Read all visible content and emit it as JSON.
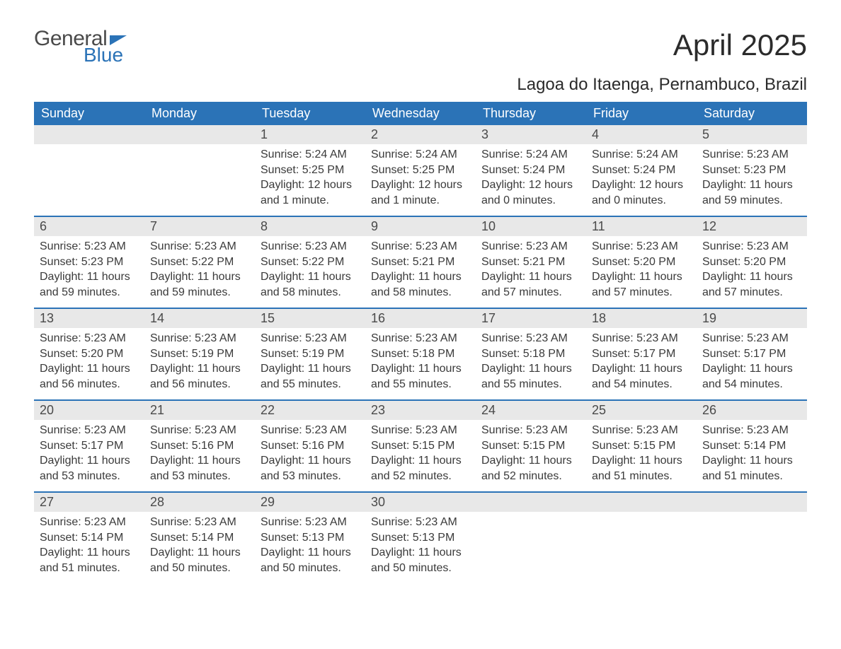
{
  "logo": {
    "word1": "General",
    "word2": "Blue"
  },
  "title": "April 2025",
  "subtitle": "Lagoa do Itaenga, Pernambuco, Brazil",
  "colors": {
    "header_bg": "#2b73b7",
    "header_text": "#ffffff",
    "daynum_bg": "#e8e8e8",
    "body_text": "#3a3a3a",
    "page_bg": "#ffffff",
    "logo_gray": "#4a4a4a",
    "logo_blue": "#2b73b7"
  },
  "weekdays": [
    "Sunday",
    "Monday",
    "Tuesday",
    "Wednesday",
    "Thursday",
    "Friday",
    "Saturday"
  ],
  "weeks": [
    [
      null,
      null,
      {
        "n": "1",
        "sunrise": "5:24 AM",
        "sunset": "5:25 PM",
        "daylight": "12 hours and 1 minute."
      },
      {
        "n": "2",
        "sunrise": "5:24 AM",
        "sunset": "5:25 PM",
        "daylight": "12 hours and 1 minute."
      },
      {
        "n": "3",
        "sunrise": "5:24 AM",
        "sunset": "5:24 PM",
        "daylight": "12 hours and 0 minutes."
      },
      {
        "n": "4",
        "sunrise": "5:24 AM",
        "sunset": "5:24 PM",
        "daylight": "12 hours and 0 minutes."
      },
      {
        "n": "5",
        "sunrise": "5:23 AM",
        "sunset": "5:23 PM",
        "daylight": "11 hours and 59 minutes."
      }
    ],
    [
      {
        "n": "6",
        "sunrise": "5:23 AM",
        "sunset": "5:23 PM",
        "daylight": "11 hours and 59 minutes."
      },
      {
        "n": "7",
        "sunrise": "5:23 AM",
        "sunset": "5:22 PM",
        "daylight": "11 hours and 59 minutes."
      },
      {
        "n": "8",
        "sunrise": "5:23 AM",
        "sunset": "5:22 PM",
        "daylight": "11 hours and 58 minutes."
      },
      {
        "n": "9",
        "sunrise": "5:23 AM",
        "sunset": "5:21 PM",
        "daylight": "11 hours and 58 minutes."
      },
      {
        "n": "10",
        "sunrise": "5:23 AM",
        "sunset": "5:21 PM",
        "daylight": "11 hours and 57 minutes."
      },
      {
        "n": "11",
        "sunrise": "5:23 AM",
        "sunset": "5:20 PM",
        "daylight": "11 hours and 57 minutes."
      },
      {
        "n": "12",
        "sunrise": "5:23 AM",
        "sunset": "5:20 PM",
        "daylight": "11 hours and 57 minutes."
      }
    ],
    [
      {
        "n": "13",
        "sunrise": "5:23 AM",
        "sunset": "5:20 PM",
        "daylight": "11 hours and 56 minutes."
      },
      {
        "n": "14",
        "sunrise": "5:23 AM",
        "sunset": "5:19 PM",
        "daylight": "11 hours and 56 minutes."
      },
      {
        "n": "15",
        "sunrise": "5:23 AM",
        "sunset": "5:19 PM",
        "daylight": "11 hours and 55 minutes."
      },
      {
        "n": "16",
        "sunrise": "5:23 AM",
        "sunset": "5:18 PM",
        "daylight": "11 hours and 55 minutes."
      },
      {
        "n": "17",
        "sunrise": "5:23 AM",
        "sunset": "5:18 PM",
        "daylight": "11 hours and 55 minutes."
      },
      {
        "n": "18",
        "sunrise": "5:23 AM",
        "sunset": "5:17 PM",
        "daylight": "11 hours and 54 minutes."
      },
      {
        "n": "19",
        "sunrise": "5:23 AM",
        "sunset": "5:17 PM",
        "daylight": "11 hours and 54 minutes."
      }
    ],
    [
      {
        "n": "20",
        "sunrise": "5:23 AM",
        "sunset": "5:17 PM",
        "daylight": "11 hours and 53 minutes."
      },
      {
        "n": "21",
        "sunrise": "5:23 AM",
        "sunset": "5:16 PM",
        "daylight": "11 hours and 53 minutes."
      },
      {
        "n": "22",
        "sunrise": "5:23 AM",
        "sunset": "5:16 PM",
        "daylight": "11 hours and 53 minutes."
      },
      {
        "n": "23",
        "sunrise": "5:23 AM",
        "sunset": "5:15 PM",
        "daylight": "11 hours and 52 minutes."
      },
      {
        "n": "24",
        "sunrise": "5:23 AM",
        "sunset": "5:15 PM",
        "daylight": "11 hours and 52 minutes."
      },
      {
        "n": "25",
        "sunrise": "5:23 AM",
        "sunset": "5:15 PM",
        "daylight": "11 hours and 51 minutes."
      },
      {
        "n": "26",
        "sunrise": "5:23 AM",
        "sunset": "5:14 PM",
        "daylight": "11 hours and 51 minutes."
      }
    ],
    [
      {
        "n": "27",
        "sunrise": "5:23 AM",
        "sunset": "5:14 PM",
        "daylight": "11 hours and 51 minutes."
      },
      {
        "n": "28",
        "sunrise": "5:23 AM",
        "sunset": "5:14 PM",
        "daylight": "11 hours and 50 minutes."
      },
      {
        "n": "29",
        "sunrise": "5:23 AM",
        "sunset": "5:13 PM",
        "daylight": "11 hours and 50 minutes."
      },
      {
        "n": "30",
        "sunrise": "5:23 AM",
        "sunset": "5:13 PM",
        "daylight": "11 hours and 50 minutes."
      },
      null,
      null,
      null
    ]
  ],
  "labels": {
    "sunrise": "Sunrise: ",
    "sunset": "Sunset: ",
    "daylight": "Daylight: "
  }
}
